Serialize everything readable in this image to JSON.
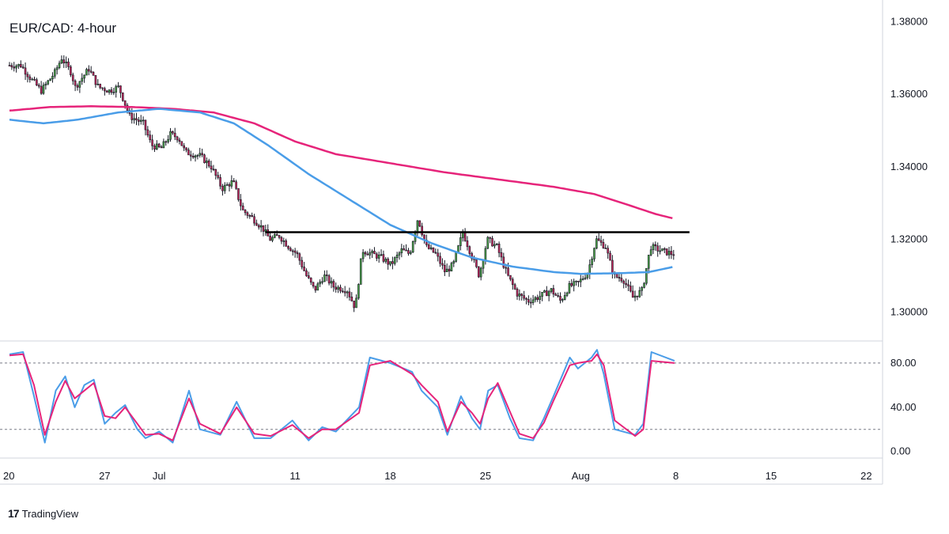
{
  "chart_data": [
    {
      "type": "candlestick",
      "title": "EUR/CAD: 4-hour",
      "y_ticks": [
        "1.38000",
        "1.36000",
        "1.34000",
        "1.32000",
        "1.30000"
      ],
      "y_tick_values": [
        1.38,
        1.36,
        1.34,
        1.32,
        1.3
      ],
      "ylim": [
        1.292,
        1.386
      ],
      "x_ticks": [
        "20",
        "27",
        "Jul",
        "11",
        "18",
        "25",
        "Aug",
        "8",
        "15",
        "22"
      ],
      "x_tick_days": [
        0,
        7,
        11,
        21,
        28,
        35,
        42,
        49,
        56,
        63
      ],
      "x_range_days": [
        0,
        63.5
      ],
      "last_candle_day": 48.9,
      "anchors": [
        [
          0.0,
          1.368
        ],
        [
          1.0,
          1.368
        ],
        [
          1.8,
          1.364
        ],
        [
          2.5,
          1.361
        ],
        [
          3.5,
          1.366
        ],
        [
          4.0,
          1.37
        ],
        [
          4.7,
          1.366
        ],
        [
          5.0,
          1.362
        ],
        [
          6.0,
          1.367
        ],
        [
          6.7,
          1.362
        ],
        [
          7.5,
          1.361
        ],
        [
          8.2,
          1.362
        ],
        [
          9.0,
          1.354
        ],
        [
          10.0,
          1.352
        ],
        [
          10.6,
          1.346
        ],
        [
          11.3,
          1.345
        ],
        [
          12.0,
          1.349
        ],
        [
          12.6,
          1.348
        ],
        [
          13.1,
          1.344
        ],
        [
          14.2,
          1.343
        ],
        [
          15.0,
          1.34
        ],
        [
          15.8,
          1.334
        ],
        [
          16.6,
          1.336
        ],
        [
          17.3,
          1.328
        ],
        [
          18.0,
          1.326
        ],
        [
          18.8,
          1.323
        ],
        [
          19.3,
          1.32
        ],
        [
          20.0,
          1.321
        ],
        [
          20.7,
          1.318
        ],
        [
          21.3,
          1.316
        ],
        [
          22.0,
          1.31
        ],
        [
          22.6,
          1.306
        ],
        [
          23.3,
          1.31
        ],
        [
          24.0,
          1.307
        ],
        [
          25.0,
          1.306
        ],
        [
          25.6,
          1.301
        ],
        [
          26.1,
          1.317
        ],
        [
          26.8,
          1.316
        ],
        [
          27.5,
          1.315
        ],
        [
          28.2,
          1.313
        ],
        [
          29.0,
          1.317
        ],
        [
          29.6,
          1.316
        ],
        [
          30.2,
          1.326
        ],
        [
          30.8,
          1.318
        ],
        [
          31.5,
          1.316
        ],
        [
          32.2,
          1.311
        ],
        [
          32.8,
          1.313
        ],
        [
          33.5,
          1.322
        ],
        [
          34.2,
          1.315
        ],
        [
          34.7,
          1.31
        ],
        [
          35.3,
          1.32
        ],
        [
          36.0,
          1.318
        ],
        [
          36.8,
          1.31
        ],
        [
          37.5,
          1.305
        ],
        [
          38.3,
          1.303
        ],
        [
          39.0,
          1.304
        ],
        [
          40.0,
          1.306
        ],
        [
          40.7,
          1.303
        ],
        [
          41.3,
          1.307
        ],
        [
          42.0,
          1.308
        ],
        [
          42.7,
          1.311
        ],
        [
          43.3,
          1.32
        ],
        [
          44.0,
          1.318
        ],
        [
          44.6,
          1.31
        ],
        [
          45.3,
          1.309
        ],
        [
          46.0,
          1.304
        ],
        [
          46.7,
          1.306
        ],
        [
          47.3,
          1.318
        ],
        [
          48.0,
          1.317
        ],
        [
          48.9,
          1.316
        ]
      ],
      "resistance_line": {
        "y": 1.322,
        "x_start_day": 18.8,
        "x_end_day": 50.0,
        "color": "#000000"
      },
      "ma_fast": {
        "color": "#4a9de8",
        "points": [
          [
            0,
            1.353
          ],
          [
            2.5,
            1.352
          ],
          [
            5,
            1.353
          ],
          [
            8,
            1.355
          ],
          [
            11,
            1.356
          ],
          [
            14,
            1.355
          ],
          [
            16.5,
            1.352
          ],
          [
            19,
            1.346
          ],
          [
            22,
            1.338
          ],
          [
            25,
            1.331
          ],
          [
            28,
            1.324
          ],
          [
            31,
            1.319
          ],
          [
            34,
            1.315
          ],
          [
            37,
            1.3125
          ],
          [
            40,
            1.311
          ],
          [
            42,
            1.3105
          ],
          [
            45,
            1.3107
          ],
          [
            47,
            1.311
          ],
          [
            48.9,
            1.3125
          ]
        ]
      },
      "ma_slow": {
        "color": "#e6247a",
        "points": [
          [
            0,
            1.3555
          ],
          [
            3,
            1.3565
          ],
          [
            6,
            1.3567
          ],
          [
            9,
            1.3565
          ],
          [
            12,
            1.356
          ],
          [
            15,
            1.355
          ],
          [
            18,
            1.352
          ],
          [
            21,
            1.347
          ],
          [
            24,
            1.3435
          ],
          [
            28,
            1.341
          ],
          [
            32,
            1.3385
          ],
          [
            36,
            1.3365
          ],
          [
            40,
            1.3345
          ],
          [
            43,
            1.3325
          ],
          [
            45.5,
            1.3295
          ],
          [
            47.5,
            1.327
          ],
          [
            48.9,
            1.3257
          ]
        ]
      },
      "colors": {
        "up": "#4ca64a",
        "down": "#c4265c",
        "wick": "#131722"
      }
    },
    {
      "type": "line",
      "title": "",
      "y_ticks": [
        "80.00",
        "40.00",
        "0.00"
      ],
      "y_tick_values": [
        80,
        40,
        0
      ],
      "ylim": [
        -6,
        100
      ],
      "dashed_levels": [
        80,
        20
      ],
      "series": [
        {
          "color": "#4a9de8",
          "points": [
            [
              0,
              88
            ],
            [
              1,
              90
            ],
            [
              1.8,
              50
            ],
            [
              2.6,
              8
            ],
            [
              3.4,
              55
            ],
            [
              4.1,
              68
            ],
            [
              4.8,
              40
            ],
            [
              5.5,
              60
            ],
            [
              6.2,
              65
            ],
            [
              7,
              25
            ],
            [
              7.8,
              35
            ],
            [
              8.5,
              42
            ],
            [
              9.4,
              20
            ],
            [
              10,
              12
            ],
            [
              11,
              18
            ],
            [
              12,
              8
            ],
            [
              13.2,
              55
            ],
            [
              14,
              20
            ],
            [
              15.5,
              15
            ],
            [
              16.7,
              45
            ],
            [
              18,
              12
            ],
            [
              19.2,
              12
            ],
            [
              20.8,
              28
            ],
            [
              22,
              10
            ],
            [
              23,
              22
            ],
            [
              24,
              18
            ],
            [
              25.7,
              40
            ],
            [
              26.5,
              85
            ],
            [
              28,
              80
            ],
            [
              29.6,
              72
            ],
            [
              30.3,
              55
            ],
            [
              31.5,
              40
            ],
            [
              32.2,
              15
            ],
            [
              33.2,
              50
            ],
            [
              34,
              30
            ],
            [
              34.6,
              20
            ],
            [
              35.2,
              55
            ],
            [
              35.9,
              60
            ],
            [
              36.8,
              30
            ],
            [
              37.5,
              12
            ],
            [
              38.5,
              10
            ],
            [
              39.3,
              30
            ],
            [
              40,
              50
            ],
            [
              41.2,
              85
            ],
            [
              41.8,
              75
            ],
            [
              42.8,
              85
            ],
            [
              43.2,
              92
            ],
            [
              43.7,
              70
            ],
            [
              44.5,
              20
            ],
            [
              46,
              15
            ],
            [
              46.6,
              25
            ],
            [
              47.2,
              90
            ],
            [
              48.9,
              82
            ]
          ]
        },
        {
          "color": "#e6247a",
          "points": [
            [
              0,
              87
            ],
            [
              1,
              88
            ],
            [
              1.8,
              60
            ],
            [
              2.6,
              15
            ],
            [
              3.4,
              45
            ],
            [
              4.1,
              64
            ],
            [
              4.8,
              48
            ],
            [
              5.5,
              55
            ],
            [
              6.2,
              62
            ],
            [
              7,
              32
            ],
            [
              7.8,
              30
            ],
            [
              8.5,
              40
            ],
            [
              9.4,
              25
            ],
            [
              10,
              15
            ],
            [
              11,
              16
            ],
            [
              12,
              10
            ],
            [
              13.2,
              48
            ],
            [
              14,
              25
            ],
            [
              15.5,
              16
            ],
            [
              16.7,
              40
            ],
            [
              18,
              16
            ],
            [
              19.2,
              14
            ],
            [
              20.8,
              24
            ],
            [
              22,
              12
            ],
            [
              23,
              20
            ],
            [
              24,
              20
            ],
            [
              25.7,
              35
            ],
            [
              26.5,
              78
            ],
            [
              28,
              82
            ],
            [
              29.6,
              70
            ],
            [
              30.3,
              60
            ],
            [
              31.5,
              45
            ],
            [
              32.2,
              18
            ],
            [
              33.2,
              45
            ],
            [
              34,
              35
            ],
            [
              34.6,
              25
            ],
            [
              35.2,
              48
            ],
            [
              35.9,
              62
            ],
            [
              36.8,
              36
            ],
            [
              37.5,
              16
            ],
            [
              38.5,
              12
            ],
            [
              39.3,
              26
            ],
            [
              40,
              46
            ],
            [
              41.2,
              78
            ],
            [
              41.8,
              80
            ],
            [
              42.8,
              82
            ],
            [
              43.2,
              88
            ],
            [
              43.7,
              78
            ],
            [
              44.5,
              28
            ],
            [
              46,
              14
            ],
            [
              46.6,
              20
            ],
            [
              47.2,
              82
            ],
            [
              48.9,
              80
            ]
          ]
        }
      ]
    }
  ],
  "branding": {
    "logo_mark": "17",
    "logo_text": "TradingView"
  }
}
